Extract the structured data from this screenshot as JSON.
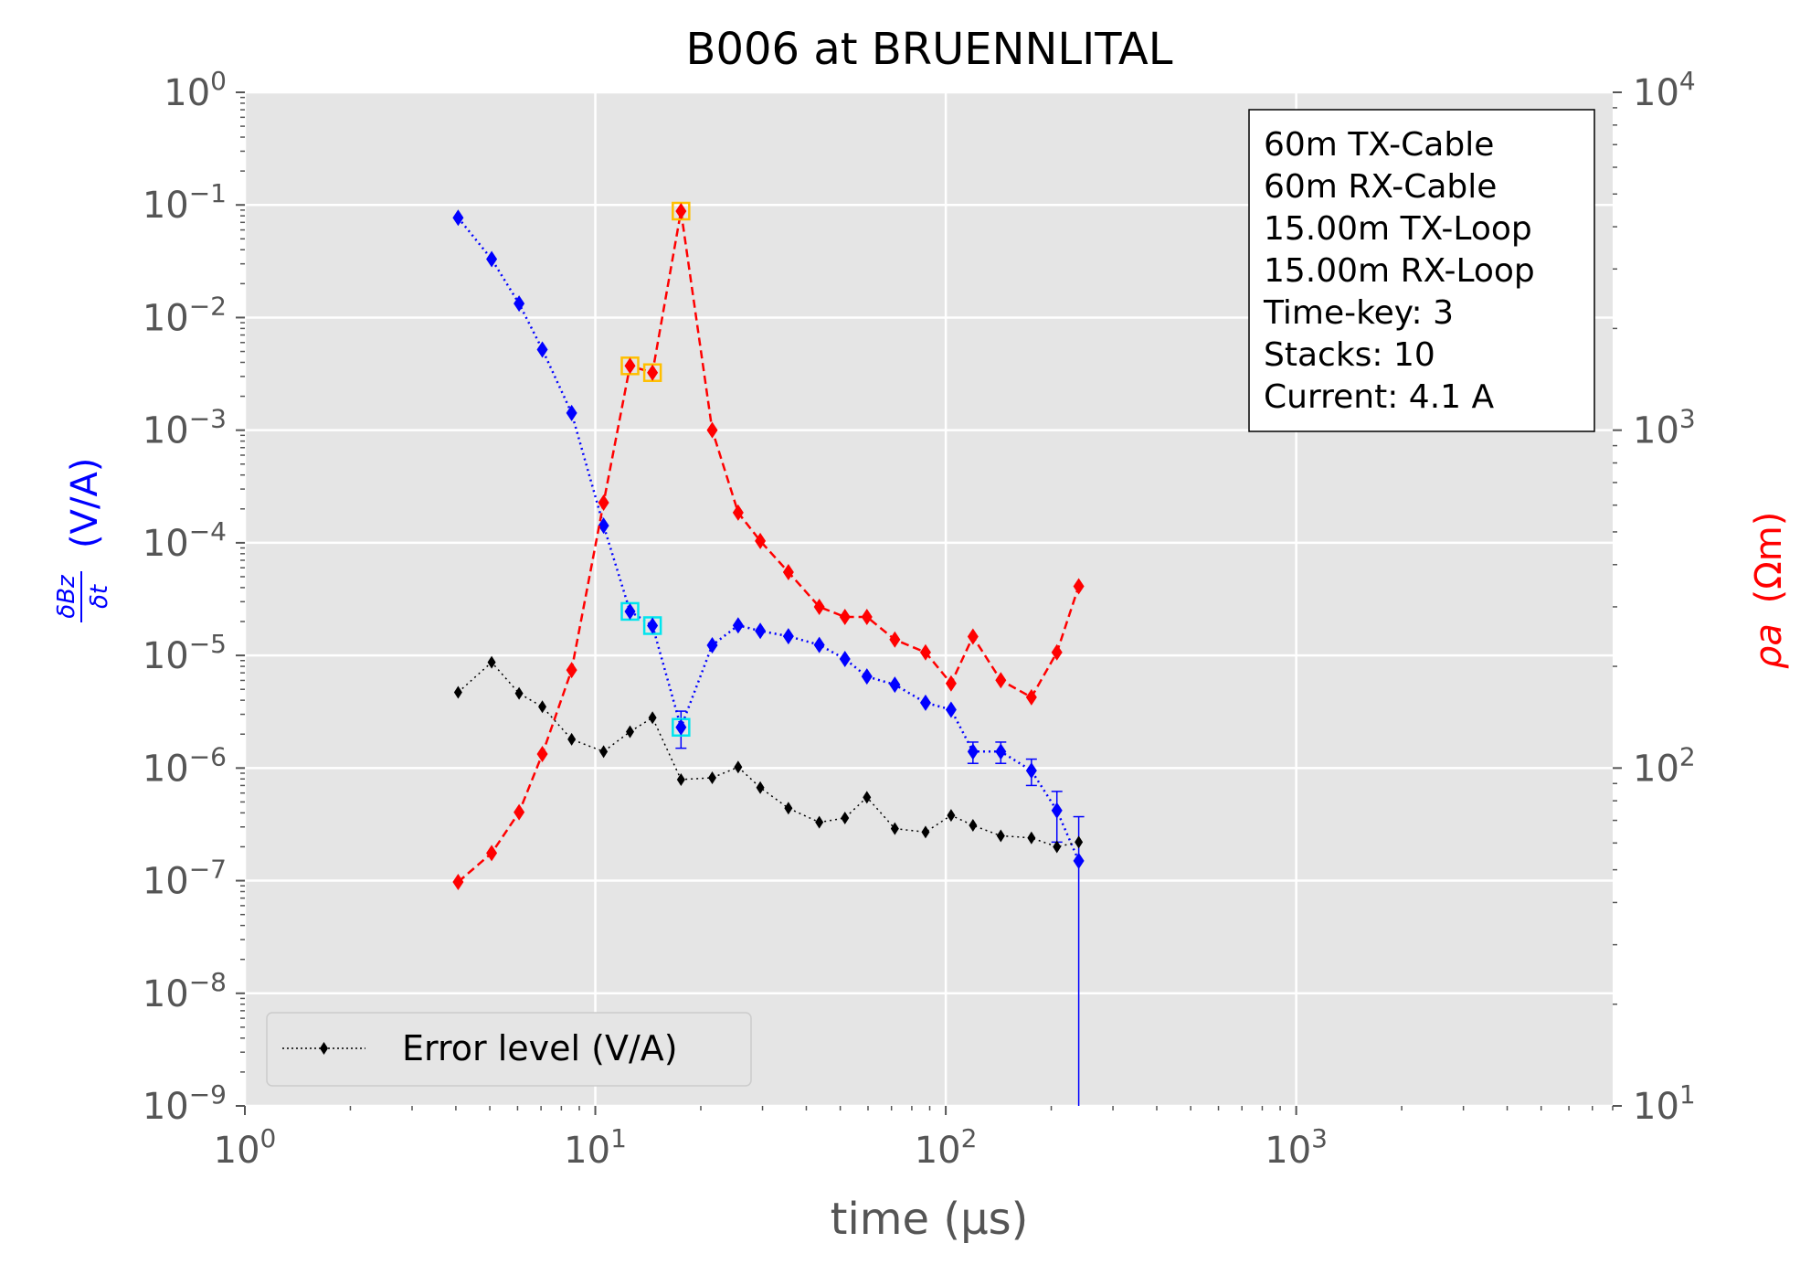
{
  "chart_data": {
    "type": "scatter",
    "title": "B006 at BRUENNLITAL",
    "xlabel": "time (μs)",
    "ylabel_left": {
      "main": "(V/A)",
      "numerator": "δBz",
      "denominator": "δt"
    },
    "ylabel_right": {
      "symbol": "ρa",
      "unit": "(Ωm)"
    },
    "x_scale": "log",
    "y_left_scale": "log",
    "y_right_scale": "log",
    "xlim": [
      1,
      8000
    ],
    "ylim_left": [
      1e-09,
      1
    ],
    "ylim_right": [
      10,
      10000
    ],
    "grid": true,
    "legend_position": "lower-left",
    "x_ticks": [
      {
        "value": 1,
        "base": "10",
        "exp": "0"
      },
      {
        "value": 10,
        "base": "10",
        "exp": "1"
      },
      {
        "value": 100,
        "base": "10",
        "exp": "2"
      },
      {
        "value": 1000,
        "base": "10",
        "exp": "3"
      }
    ],
    "y_left_ticks": [
      {
        "value": 1,
        "base": "10",
        "exp": "0"
      },
      {
        "value": 0.1,
        "base": "10",
        "exp": "−1"
      },
      {
        "value": 0.01,
        "base": "10",
        "exp": "−2"
      },
      {
        "value": 0.001,
        "base": "10",
        "exp": "−3"
      },
      {
        "value": 0.0001,
        "base": "10",
        "exp": "−4"
      },
      {
        "value": 1e-05,
        "base": "10",
        "exp": "−5"
      },
      {
        "value": 1e-06,
        "base": "10",
        "exp": "−6"
      },
      {
        "value": 1e-07,
        "base": "10",
        "exp": "−7"
      },
      {
        "value": 1e-08,
        "base": "10",
        "exp": "−8"
      },
      {
        "value": 1e-09,
        "base": "10",
        "exp": "−9"
      }
    ],
    "y_right_ticks": [
      {
        "value": 10000,
        "base": "10",
        "exp": "4"
      },
      {
        "value": 1000,
        "base": "10",
        "exp": "3"
      },
      {
        "value": 100,
        "base": "10",
        "exp": "2"
      },
      {
        "value": 10,
        "base": "10",
        "exp": "1"
      }
    ],
    "info_box": [
      "60m TX-Cable",
      "60m RX-Cable",
      "15.00m TX-Loop",
      "15.00m RX-Loop",
      "Time-key: 3",
      "Stacks: 10",
      "Current: 4.1 A"
    ],
    "series": [
      {
        "name": "",
        "axis": "left",
        "color": "#0000ff",
        "line_style": "dotted",
        "marker": "diamond",
        "x": [
          4.06,
          5.06,
          6.06,
          7.06,
          8.56,
          10.56,
          12.56,
          14.56,
          17.56,
          21.56,
          25.56,
          29.56,
          35.56,
          43.56,
          51.56,
          59.56,
          71.56,
          87.56,
          103.56,
          119.56,
          143.56,
          175.56,
          207.56,
          239.56
        ],
        "y": [
          0.077,
          0.033,
          0.0133,
          0.0052,
          0.00142,
          0.000142,
          2.46e-05,
          1.84e-05,
          2.3e-06,
          1.23e-05,
          1.85e-05,
          1.65e-05,
          1.48e-05,
          1.24e-05,
          9.3e-06,
          6.5e-06,
          5.5e-06,
          3.8e-06,
          3.3e-06,
          1.4e-06,
          1.4e-06,
          9.5e-07,
          4.2e-07,
          1.5e-07
        ],
        "error_upper": [
          null,
          null,
          null,
          null,
          null,
          null,
          null,
          null,
          3.2e-06,
          null,
          null,
          null,
          null,
          null,
          null,
          null,
          null,
          null,
          null,
          1.7e-06,
          1.7e-06,
          1.2e-06,
          6.2e-07,
          3.7e-07
        ],
        "error_lower": [
          null,
          null,
          null,
          null,
          null,
          null,
          null,
          null,
          1.5e-06,
          null,
          null,
          null,
          null,
          null,
          null,
          null,
          null,
          null,
          null,
          1.1e-06,
          1.1e-06,
          7e-07,
          2.2e-07,
          1e-09
        ],
        "highlighted_indices": [
          6,
          7,
          8
        ],
        "highlight_color": "#00e5ee"
      },
      {
        "name": "",
        "axis": "right",
        "color": "#ff0000",
        "line_style": "dashed",
        "marker": "diamond",
        "x": [
          4.06,
          5.06,
          6.06,
          7.06,
          8.56,
          10.56,
          12.56,
          14.56,
          17.56,
          21.56,
          25.56,
          29.56,
          35.56,
          43.56,
          51.56,
          59.56,
          71.56,
          87.56,
          103.56,
          119.56,
          143.56,
          175.56,
          207.56,
          239.56
        ],
        "y": [
          46,
          56,
          74,
          110,
          195,
          610,
          1550,
          1480,
          4450,
          1000,
          570,
          470,
          380,
          300,
          280,
          280,
          240,
          220,
          178,
          245,
          182,
          162,
          220,
          345
        ],
        "highlighted_indices": [
          6,
          7,
          8
        ],
        "highlight_color": "#ffbf00"
      },
      {
        "name": "Error level (V/A)",
        "axis": "left",
        "color": "#000000",
        "line_style": "dotted",
        "marker": "diamond",
        "x": [
          4.06,
          5.06,
          6.06,
          7.06,
          8.56,
          10.56,
          12.56,
          14.56,
          17.56,
          21.56,
          25.56,
          29.56,
          35.56,
          43.56,
          51.56,
          59.56,
          71.56,
          87.56,
          103.56,
          119.56,
          143.56,
          175.56,
          207.56,
          239.56
        ],
        "y": [
          4.7e-06,
          8.7e-06,
          4.6e-06,
          3.5e-06,
          1.8e-06,
          1.4e-06,
          2.1e-06,
          2.8e-06,
          7.9e-07,
          8.2e-07,
          1.02e-06,
          6.7e-07,
          4.4e-07,
          3.3e-07,
          3.6e-07,
          5.5e-07,
          2.9e-07,
          2.7e-07,
          3.8e-07,
          3.1e-07,
          2.5e-07,
          2.4e-07,
          2e-07,
          2.2e-07
        ]
      }
    ]
  }
}
